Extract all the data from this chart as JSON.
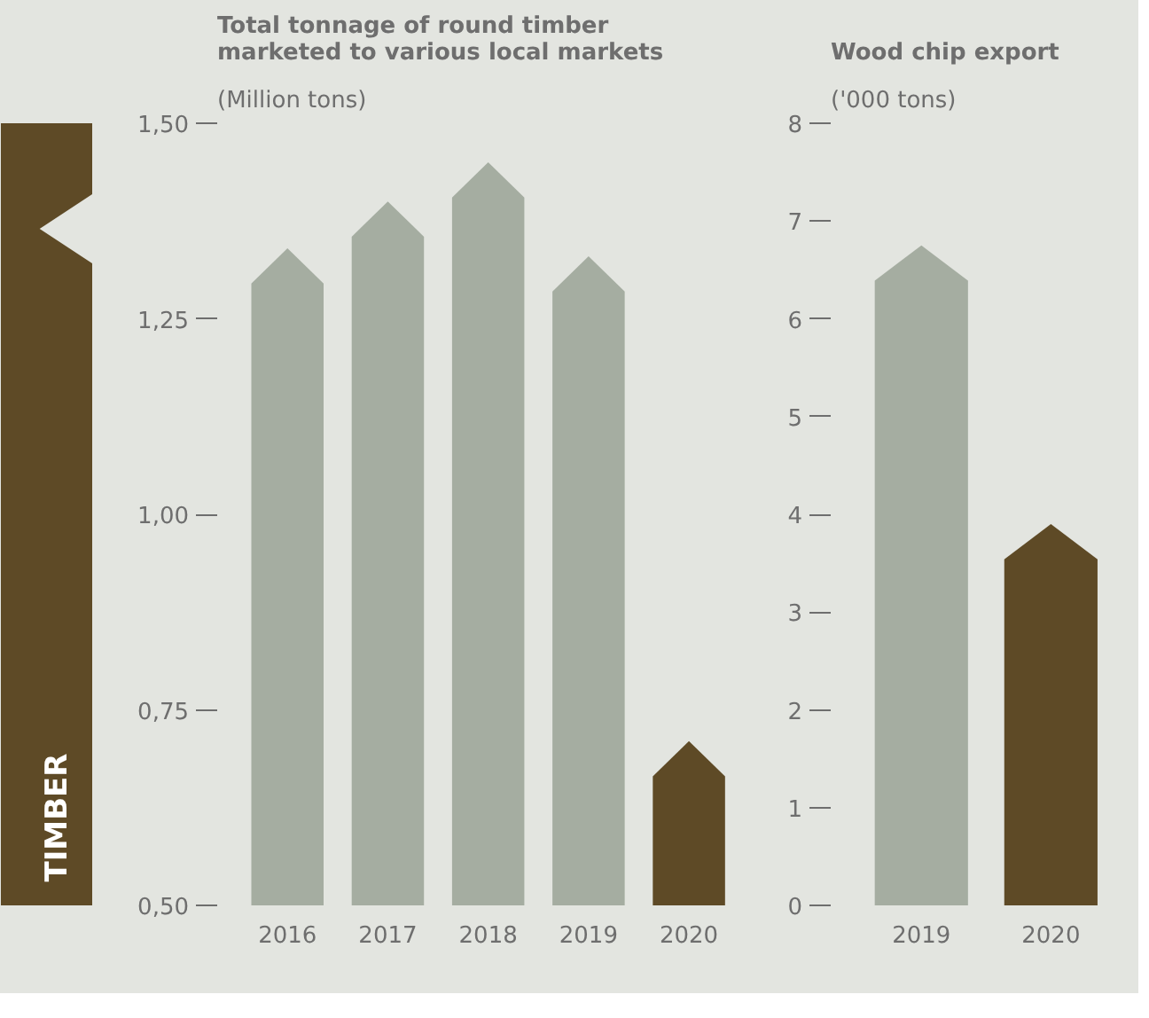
{
  "chart_data": [
    {
      "type": "bar",
      "title": "Total tonnage of round timber marketed to various local markets",
      "subtitle": "(Million tons)",
      "annotations": [
        "TIMBER"
      ],
      "categories": [
        "2016",
        "2017",
        "2018",
        "2019",
        "2020"
      ],
      "values": [
        1.34,
        1.4,
        1.45,
        1.33,
        0.71
      ],
      "colors": [
        "#a5ada1",
        "#a5ada1",
        "#a5ada1",
        "#a5ada1",
        "#5e4a26"
      ],
      "ylim": [
        0.5,
        1.5
      ],
      "yticks": [
        {
          "value": 0.5,
          "label": "0,50"
        },
        {
          "value": 0.75,
          "label": "0,75"
        },
        {
          "value": 1.0,
          "label": "1,00"
        },
        {
          "value": 1.25,
          "label": "1,25"
        },
        {
          "value": 1.5,
          "label": "1,50"
        }
      ]
    },
    {
      "type": "bar",
      "title": "Wood chip export",
      "subtitle": "('000 tons)",
      "categories": [
        "2019",
        "2020"
      ],
      "values": [
        6.75,
        3.9
      ],
      "colors": [
        "#a5ada1",
        "#5e4a26"
      ],
      "ylim": [
        0,
        8
      ],
      "yticks": [
        0,
        1,
        2,
        3,
        4,
        5,
        6,
        7,
        8
      ]
    }
  ]
}
